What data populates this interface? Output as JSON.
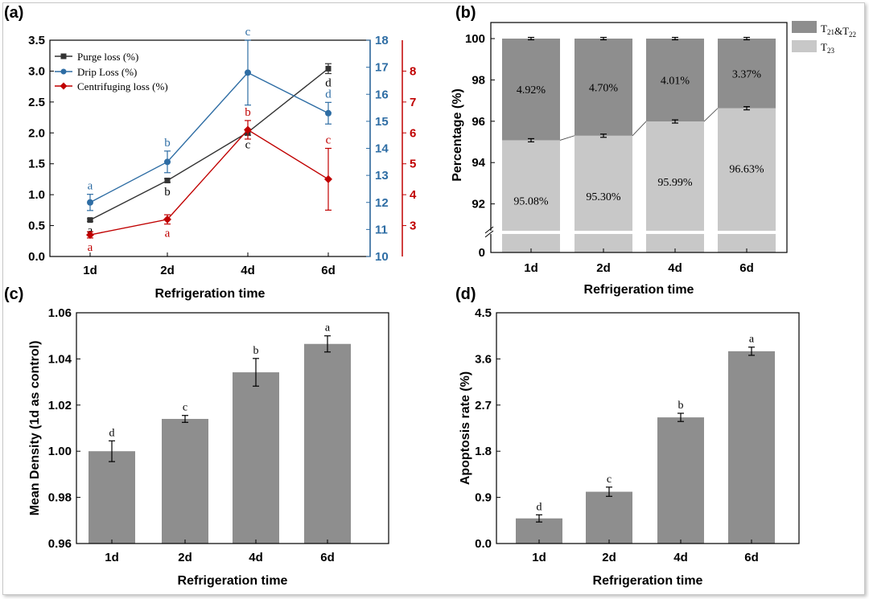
{
  "panels": [
    {
      "id": "a",
      "label": "(a)",
      "chart_data": {
        "type": "line",
        "categories": [
          "1d",
          "2d",
          "4d",
          "6d"
        ],
        "xlabel": "Refrigeration time",
        "axes": {
          "left": {
            "ylim": [
              0.0,
              3.5
            ],
            "ticks": [
              "0.0",
              "0.5",
              "1.0",
              "1.5",
              "2.0",
              "2.5",
              "3.0",
              "3.5"
            ],
            "color": "#000000"
          },
          "right1": {
            "ylim": [
              10,
              18
            ],
            "ticks": [
              "10",
              "11",
              "12",
              "13",
              "14",
              "15",
              "16",
              "17",
              "18"
            ],
            "color": "#2e6da4"
          },
          "right2": {
            "ylim": [
              2,
              9
            ],
            "ticks": [
              "3",
              "4",
              "5",
              "6",
              "7",
              "8"
            ],
            "color": "#c00000"
          }
        },
        "series": [
          {
            "name": "Purge loss (%)",
            "axis": "left",
            "color": "#333333",
            "marker": "square",
            "values": [
              0.59,
              1.23,
              2.01,
              3.04
            ],
            "errors": [
              0.02,
              0.03,
              0.05,
              0.08
            ],
            "letters": [
              "a",
              "b",
              "c",
              "d"
            ],
            "letter_pos": [
              "below",
              "below",
              "below",
              "below"
            ]
          },
          {
            "name": "Drip Loss (%)",
            "axis": "right1",
            "color": "#2e6da4",
            "marker": "circle",
            "values": [
              12.0,
              13.5,
              16.8,
              15.3
            ],
            "errors": [
              0.3,
              0.4,
              1.2,
              0.4
            ],
            "letters": [
              "a",
              "b",
              "c",
              "d"
            ],
            "letter_pos": [
              "above",
              "above",
              "above",
              "above"
            ]
          },
          {
            "name": "Centrifuging loss (%)",
            "axis": "right2",
            "color": "#c00000",
            "marker": "diamond",
            "values": [
              2.7,
              3.2,
              6.1,
              4.5
            ],
            "errors": [
              0.1,
              0.15,
              0.3,
              1.0
            ],
            "letters": [
              "a",
              "a",
              "b",
              "c"
            ],
            "letter_pos": [
              "below",
              "below",
              "above",
              "above"
            ]
          }
        ]
      }
    },
    {
      "id": "b",
      "label": "(b)",
      "chart_data": {
        "type": "bar",
        "stacked": true,
        "categories": [
          "1d",
          "2d",
          "4d",
          "6d"
        ],
        "xlabel": "Refrigeration time",
        "ylabel": "Percentage (%)",
        "ylim": [
          90,
          100
        ],
        "ticks": [
          "92",
          "94",
          "96",
          "98",
          "100"
        ],
        "zero_tick": "0",
        "axis_break": true,
        "series": [
          {
            "name": "T23",
            "name_main": "T",
            "name_sub": "23",
            "color": "#c8c8c8",
            "values": [
              95.08,
              95.3,
              95.99,
              96.63
            ],
            "labels": [
              "95.08%",
              "95.30%",
              "95.99%",
              "96.63%"
            ],
            "errors": [
              0.05,
              0.06,
              0.05,
              0.07
            ]
          },
          {
            "name": "T21&T22",
            "name_main_1": "T",
            "name_sub_1": "21",
            "name_amp": "&",
            "name_main_2": "T",
            "name_sub_2": "22",
            "color": "#8e8e8e",
            "values": [
              4.92,
              4.7,
              4.01,
              3.37
            ],
            "labels": [
              "4.92%",
              "4.70%",
              "4.01%",
              "3.37%"
            ],
            "errors": [
              0.03,
              0.03,
              0.03,
              0.03
            ]
          }
        ]
      }
    },
    {
      "id": "c",
      "label": "(c)",
      "chart_data": {
        "type": "bar",
        "categories": [
          "1d",
          "2d",
          "4d",
          "6d"
        ],
        "xlabel": "Refrigeration time",
        "ylabel": "Mean Density (1d as control)",
        "ylim": [
          0.96,
          1.06
        ],
        "ticks": [
          "0.96",
          "0.98",
          "1.00",
          "1.02",
          "1.04",
          "1.06"
        ],
        "color": "#8e8e8e",
        "values": [
          1.0,
          1.014,
          1.0342,
          1.0465
        ],
        "errors": [
          0.0045,
          0.0015,
          0.006,
          0.0035
        ],
        "letters": [
          "d",
          "c",
          "b",
          "a"
        ]
      }
    },
    {
      "id": "d",
      "label": "(d)",
      "chart_data": {
        "type": "bar",
        "categories": [
          "1d",
          "2d",
          "4d",
          "6d"
        ],
        "xlabel": "Refrigeration time",
        "ylabel": "Apoptosis rate  (%)",
        "ylim": [
          0.0,
          4.5
        ],
        "ticks": [
          "0.0",
          "0.9",
          "1.8",
          "2.7",
          "3.6",
          "4.5"
        ],
        "color": "#8e8e8e",
        "values": [
          0.49,
          1.01,
          2.46,
          3.75
        ],
        "errors": [
          0.07,
          0.09,
          0.08,
          0.08
        ],
        "letters": [
          "d",
          "c",
          "b",
          "a"
        ]
      }
    }
  ]
}
